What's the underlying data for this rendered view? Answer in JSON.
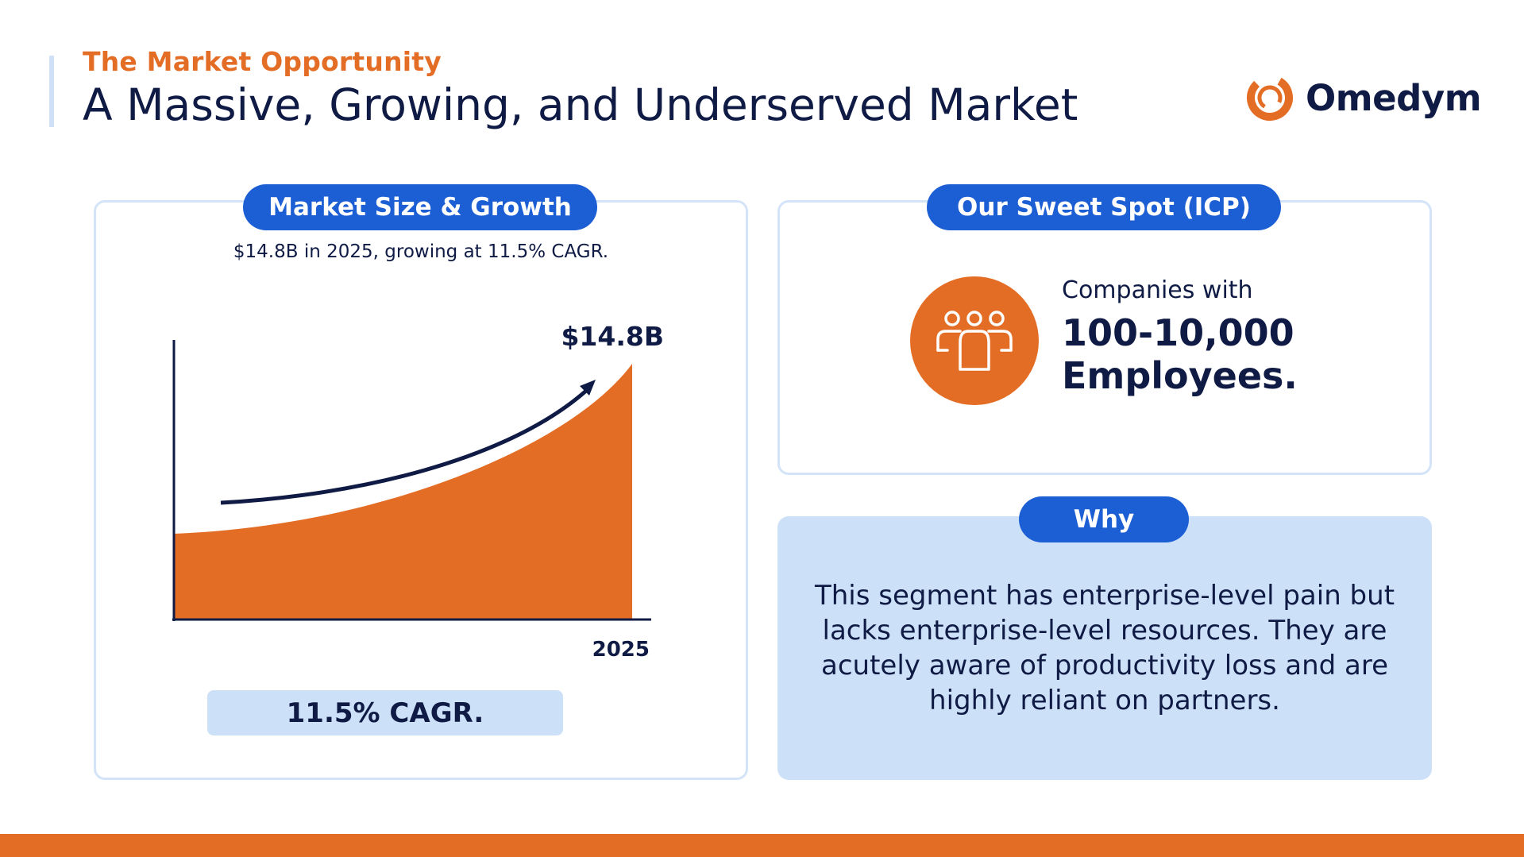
{
  "header": {
    "eyebrow": "The Market Opportunity",
    "title": "A Massive, Growing, and Underserved Market"
  },
  "logo": {
    "text": "Omedym",
    "icon": "ring-logo-icon"
  },
  "market": {
    "pill_label": "Market Size & Growth",
    "subtitle": "$14.8B in 2025, growing at 11.5% CAGR.",
    "cagr_label": "11.5% CAGR."
  },
  "chart_data": {
    "type": "area",
    "categories": [
      "2025"
    ],
    "values": [
      14.8
    ],
    "value_label": "$14.8B",
    "x_tick_label": "2025",
    "growth_rate": "11.5% CAGR",
    "trend": "exponential",
    "series_color": "#e46d26",
    "grid": false
  },
  "icp": {
    "pill_label": "Our Sweet Spot (ICP)",
    "icon": "team-group-icon",
    "lead": "Companies with",
    "value_line1": "100-10,000",
    "value_line2": "Employees."
  },
  "why": {
    "pill_label": "Why",
    "body": "This segment has enterprise-level pain but lacks enterprise-level resources. They are acutely aware of productivity loss and are highly reliant on partners."
  },
  "colors": {
    "accent_orange": "#e46d26",
    "accent_blue": "#1c5ed3",
    "light_blue": "#cce0f8",
    "navy": "#0f1b45"
  }
}
